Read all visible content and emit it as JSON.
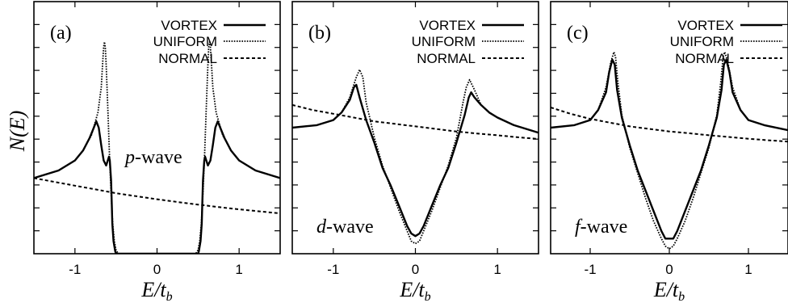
{
  "figure": {
    "ylabel": "N(E)",
    "xlabel": "E/t",
    "xlabel_sub": "b"
  },
  "chart_data": [
    {
      "type": "line",
      "panel_label": "(a)",
      "wave_label": {
        "sym": "p",
        "text": "-wave"
      },
      "xlim": [
        -1.5,
        1.5
      ],
      "xticks": [
        -1,
        0,
        1
      ],
      "xtick_labels": [
        "-1",
        "0",
        "1"
      ],
      "ylim": [
        0,
        1
      ],
      "legend": [
        "VORTEX",
        "UNIFORM",
        "NORMAL"
      ],
      "legend_position": "top-right",
      "series": [
        {
          "name": "VORTEX",
          "style": "solid",
          "x": [
            -1.5,
            -1.2,
            -1.0,
            -0.9,
            -0.82,
            -0.77,
            -0.74,
            -0.71,
            -0.68,
            -0.65,
            -0.62,
            -0.6,
            -0.585,
            -0.575,
            -0.56,
            -0.55,
            -0.545,
            -0.53,
            -0.51,
            -0.5,
            0.5,
            0.51,
            0.53,
            0.545,
            0.55,
            0.56,
            0.575,
            0.585,
            0.6,
            0.62,
            0.65,
            0.68,
            0.71,
            0.74,
            0.77,
            0.82,
            0.9,
            1.0,
            1.2,
            1.5
          ],
          "y": [
            0.3,
            0.33,
            0.37,
            0.41,
            0.46,
            0.5,
            0.525,
            0.5,
            0.43,
            0.37,
            0.35,
            0.37,
            0.385,
            0.37,
            0.29,
            0.18,
            0.12,
            0.05,
            0.01,
            0.0,
            0.0,
            0.01,
            0.05,
            0.12,
            0.18,
            0.29,
            0.37,
            0.385,
            0.37,
            0.35,
            0.37,
            0.43,
            0.5,
            0.525,
            0.5,
            0.46,
            0.41,
            0.37,
            0.33,
            0.3
          ]
        },
        {
          "name": "UNIFORM",
          "style": "dotted",
          "x": [
            -1.5,
            -1.2,
            -1.0,
            -0.9,
            -0.8,
            -0.72,
            -0.68,
            -0.66,
            -0.65,
            -0.64,
            -0.63,
            -0.62,
            -0.6,
            -0.58,
            -0.56,
            -0.54,
            -0.52,
            -0.5,
            -0.48,
            -0.46,
            0.46,
            0.48,
            0.5,
            0.52,
            0.54,
            0.56,
            0.58,
            0.6,
            0.62,
            0.63,
            0.64,
            0.65,
            0.66,
            0.68,
            0.72,
            0.8,
            0.9,
            1.0,
            1.2,
            1.5
          ],
          "y": [
            0.3,
            0.33,
            0.37,
            0.41,
            0.47,
            0.56,
            0.66,
            0.77,
            0.82,
            0.84,
            0.82,
            0.75,
            0.58,
            0.4,
            0.24,
            0.12,
            0.05,
            0.015,
            0.004,
            0.0,
            0.0,
            0.004,
            0.015,
            0.05,
            0.12,
            0.24,
            0.4,
            0.58,
            0.75,
            0.82,
            0.84,
            0.82,
            0.77,
            0.66,
            0.56,
            0.47,
            0.41,
            0.37,
            0.33,
            0.3
          ]
        },
        {
          "name": "NORMAL",
          "style": "dashed",
          "x": [
            -1.5,
            -1.25,
            -1.0,
            -0.75,
            -0.5,
            -0.25,
            0.0,
            0.25,
            0.5,
            0.75,
            1.0,
            1.25,
            1.5
          ],
          "y": [
            0.3,
            0.285,
            0.27,
            0.255,
            0.24,
            0.228,
            0.216,
            0.205,
            0.195,
            0.185,
            0.176,
            0.168,
            0.16
          ]
        }
      ]
    },
    {
      "type": "line",
      "panel_label": "(b)",
      "wave_label": {
        "sym": "d",
        "text": "-wave"
      },
      "xlim": [
        -1.5,
        1.5
      ],
      "xticks": [
        -1,
        0,
        1
      ],
      "xtick_labels": [
        "-1",
        "0",
        "1"
      ],
      "ylim": [
        0,
        1
      ],
      "legend": [
        "VORTEX",
        "UNIFORM",
        "NORMAL"
      ],
      "legend_position": "top-right",
      "series": [
        {
          "name": "VORTEX",
          "style": "solid",
          "x": [
            -1.5,
            -1.2,
            -1.0,
            -0.9,
            -0.8,
            -0.75,
            -0.72,
            -0.68,
            -0.6,
            -0.5,
            -0.4,
            -0.3,
            -0.2,
            -0.1,
            -0.05,
            0.0,
            0.05,
            0.1,
            0.2,
            0.3,
            0.4,
            0.5,
            0.6,
            0.65,
            0.68,
            0.72,
            0.8,
            0.9,
            1.0,
            1.2,
            1.5
          ],
          "y": [
            0.5,
            0.51,
            0.53,
            0.56,
            0.61,
            0.66,
            0.67,
            0.62,
            0.53,
            0.44,
            0.34,
            0.27,
            0.19,
            0.11,
            0.08,
            0.07,
            0.08,
            0.11,
            0.19,
            0.27,
            0.34,
            0.44,
            0.55,
            0.62,
            0.64,
            0.62,
            0.59,
            0.56,
            0.54,
            0.51,
            0.48
          ]
        },
        {
          "name": "UNIFORM",
          "style": "dotted",
          "x": [
            -1.5,
            -1.2,
            -1.0,
            -0.9,
            -0.8,
            -0.72,
            -0.68,
            -0.64,
            -0.6,
            -0.5,
            -0.4,
            -0.3,
            -0.2,
            -0.1,
            -0.05,
            0.0,
            0.05,
            0.1,
            0.2,
            0.3,
            0.4,
            0.5,
            0.58,
            0.62,
            0.66,
            0.72,
            0.8,
            0.9,
            1.0,
            1.2,
            1.5
          ],
          "y": [
            0.5,
            0.51,
            0.53,
            0.56,
            0.62,
            0.7,
            0.73,
            0.7,
            0.6,
            0.46,
            0.35,
            0.26,
            0.17,
            0.09,
            0.05,
            0.04,
            0.05,
            0.09,
            0.17,
            0.26,
            0.35,
            0.46,
            0.6,
            0.66,
            0.69,
            0.65,
            0.59,
            0.56,
            0.54,
            0.51,
            0.48
          ]
        },
        {
          "name": "NORMAL",
          "style": "dashed",
          "x": [
            -1.5,
            -1.25,
            -1.0,
            -0.75,
            -0.5,
            -0.25,
            0.0,
            0.25,
            0.5,
            0.75,
            1.0,
            1.25,
            1.5
          ],
          "y": [
            0.59,
            0.57,
            0.555,
            0.54,
            0.525,
            0.515,
            0.505,
            0.495,
            0.485,
            0.477,
            0.47,
            0.462,
            0.455
          ]
        }
      ]
    },
    {
      "type": "line",
      "panel_label": "(c)",
      "wave_label": {
        "sym": "f",
        "text": "-wave"
      },
      "xlim": [
        -1.5,
        1.5
      ],
      "xticks": [
        -1,
        0,
        1
      ],
      "xtick_labels": [
        "-1",
        "0",
        "1"
      ],
      "ylim": [
        0,
        1
      ],
      "legend": [
        "VORTEX",
        "UNIFORM",
        "NORMAL"
      ],
      "legend_position": "top-right",
      "series": [
        {
          "name": "VORTEX",
          "style": "solid",
          "x": [
            -1.5,
            -1.2,
            -1.0,
            -0.9,
            -0.8,
            -0.76,
            -0.72,
            -0.69,
            -0.66,
            -0.6,
            -0.5,
            -0.4,
            -0.3,
            -0.2,
            -0.1,
            -0.05,
            0.0,
            0.05,
            0.1,
            0.2,
            0.3,
            0.4,
            0.5,
            0.6,
            0.66,
            0.69,
            0.72,
            0.76,
            0.8,
            0.9,
            1.0,
            1.2,
            1.5
          ],
          "y": [
            0.5,
            0.51,
            0.53,
            0.57,
            0.64,
            0.72,
            0.77,
            0.75,
            0.65,
            0.54,
            0.43,
            0.33,
            0.25,
            0.17,
            0.09,
            0.06,
            0.06,
            0.06,
            0.09,
            0.17,
            0.25,
            0.33,
            0.43,
            0.54,
            0.65,
            0.75,
            0.77,
            0.72,
            0.64,
            0.57,
            0.53,
            0.51,
            0.49
          ]
        },
        {
          "name": "UNIFORM",
          "style": "dotted",
          "x": [
            -1.5,
            -1.2,
            -1.0,
            -0.9,
            -0.8,
            -0.74,
            -0.7,
            -0.68,
            -0.65,
            -0.6,
            -0.5,
            -0.4,
            -0.3,
            -0.2,
            -0.1,
            -0.05,
            0.0,
            0.05,
            0.1,
            0.2,
            0.3,
            0.4,
            0.5,
            0.6,
            0.65,
            0.68,
            0.7,
            0.74,
            0.8,
            0.9,
            1.0,
            1.2,
            1.5
          ],
          "y": [
            0.5,
            0.51,
            0.53,
            0.57,
            0.66,
            0.76,
            0.8,
            0.78,
            0.68,
            0.55,
            0.42,
            0.32,
            0.22,
            0.13,
            0.06,
            0.03,
            0.02,
            0.03,
            0.06,
            0.13,
            0.22,
            0.32,
            0.42,
            0.55,
            0.68,
            0.78,
            0.8,
            0.76,
            0.66,
            0.57,
            0.53,
            0.51,
            0.49
          ]
        },
        {
          "name": "NORMAL",
          "style": "dashed",
          "x": [
            -1.5,
            -1.25,
            -1.0,
            -0.75,
            -0.5,
            -0.25,
            0.0,
            0.25,
            0.5,
            0.75,
            1.0,
            1.25,
            1.5
          ],
          "y": [
            0.58,
            0.555,
            0.535,
            0.52,
            0.505,
            0.495,
            0.485,
            0.478,
            0.47,
            0.463,
            0.456,
            0.45,
            0.445
          ]
        }
      ]
    }
  ]
}
